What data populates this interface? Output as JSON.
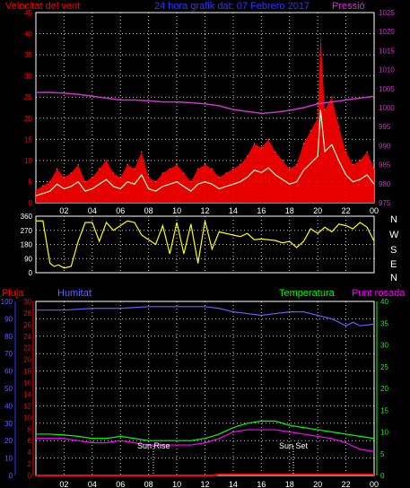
{
  "header": {
    "left_title": "Velocitat del vent",
    "center_title": "24 hora grafik dat: 07 Febrero 2017",
    "right_title": "Pressió"
  },
  "bottom_header": {
    "rain": "Pluja",
    "humidity": "Humitat",
    "temperature": "Temperatura",
    "dewpoint": "Punt rosada"
  },
  "compass_labels": [
    "N",
    "W",
    "S",
    "E",
    "N"
  ],
  "annotations": {
    "sunrise": "Sun Rise",
    "sunset": "Sun Set"
  },
  "x_ticks": [
    "02",
    "04",
    "06",
    "08",
    "10",
    "12",
    "14",
    "16",
    "18",
    "20",
    "22",
    "00"
  ],
  "colors": {
    "wind": "#ff0000",
    "gust_fill": "#ff0000",
    "wind_avg": "#ccffcc",
    "pressure": "#cc33cc",
    "direction": "#ffff00",
    "humidity": "#6060ff",
    "temperature": "#00ff00",
    "dewpoint": "#ff00ff",
    "rain": "#ff0000",
    "grid": "#ffffff",
    "axis": "#ffffff"
  },
  "chart_data": [
    {
      "type": "area",
      "title": "Velocitat del vent",
      "x_unit": "hours",
      "xlim": [
        0,
        24
      ],
      "ylim_left": [
        0,
        45
      ],
      "left_ticks": [
        "0",
        "5",
        "10",
        "15",
        "20",
        "25",
        "30",
        "35",
        "40",
        "45"
      ],
      "ylim_right": [
        975,
        1025
      ],
      "right_ticks": [
        "975",
        "980",
        "985",
        "990",
        "995",
        "1000",
        "1005",
        "1010",
        "1015",
        "1020",
        "1025"
      ],
      "series": [
        {
          "name": "Velocitat del vent",
          "x": [
            0,
            0.5,
            1,
            1.5,
            2,
            2.5,
            3,
            3.5,
            4,
            4.5,
            5,
            5.5,
            6,
            6.5,
            7,
            7.5,
            8,
            8.5,
            9,
            9.5,
            10,
            10.5,
            11,
            11.5,
            12,
            12.5,
            13,
            13.5,
            14,
            14.5,
            15,
            15.5,
            16,
            16.5,
            17,
            17.5,
            18,
            18.5,
            19,
            19.5,
            20,
            20.2,
            20.5,
            21,
            21.5,
            22,
            22.5,
            23,
            23.5,
            24
          ],
          "y": [
            3,
            4,
            5,
            8,
            6,
            7,
            9,
            5,
            6,
            8,
            10,
            7,
            6,
            9,
            8,
            12,
            6,
            5,
            7,
            8,
            9,
            7,
            5,
            8,
            9,
            8,
            6,
            7,
            8,
            9,
            11,
            14,
            13,
            15,
            12,
            10,
            8,
            9,
            14,
            17,
            20,
            40,
            22,
            25,
            18,
            12,
            9,
            10,
            12,
            8
          ]
        },
        {
          "name": "Pressió",
          "x": [
            0,
            1,
            2,
            3,
            4,
            5,
            6,
            7,
            8,
            9,
            10,
            11,
            12,
            13,
            14,
            15,
            16,
            17,
            18,
            19,
            20,
            21,
            22,
            23,
            24
          ],
          "y": [
            1004,
            1004,
            1003.8,
            1003.5,
            1003,
            1002.5,
            1002,
            1002,
            1001.8,
            1001.5,
            1001.5,
            1001.3,
            1001,
            1000.5,
            999.5,
            999,
            998.5,
            998.8,
            999.3,
            1000,
            1001,
            1001.5,
            1002,
            1002.5,
            1003
          ]
        }
      ]
    },
    {
      "type": "line",
      "title": "",
      "xlim": [
        0,
        24
      ],
      "ylim": [
        0,
        360
      ],
      "y_ticks": [
        "0",
        "90",
        "180",
        "270",
        "360"
      ],
      "series": [
        {
          "name": "direction",
          "x": [
            0,
            0.5,
            1,
            1.3,
            1.6,
            2,
            2.5,
            3,
            3.5,
            4,
            4.5,
            5,
            5.5,
            6,
            6.5,
            7,
            7.5,
            8,
            8.5,
            9,
            9.5,
            10,
            10.5,
            11,
            11.5,
            12,
            12.5,
            13,
            13.5,
            14,
            14.5,
            15,
            15.5,
            16,
            16.5,
            17,
            17.5,
            18,
            18.5,
            19,
            19.5,
            20,
            20.5,
            21,
            21.5,
            22,
            22.5,
            23,
            23.5,
            24
          ],
          "y": [
            330,
            330,
            60,
            40,
            50,
            30,
            40,
            200,
            320,
            320,
            200,
            320,
            270,
            300,
            330,
            320,
            240,
            210,
            180,
            300,
            120,
            320,
            120,
            310,
            60,
            330,
            150,
            260,
            250,
            240,
            230,
            250,
            210,
            215,
            210,
            205,
            190,
            200,
            160,
            200,
            280,
            250,
            290,
            260,
            310,
            300,
            280,
            320,
            290,
            200
          ]
        }
      ]
    },
    {
      "type": "line",
      "title": "",
      "xlim": [
        0,
        24
      ],
      "ylim_left_humidity": [
        0,
        100
      ],
      "left_ticks_humidity": [
        "0",
        "10",
        "20",
        "30",
        "40",
        "50",
        "60",
        "70",
        "80",
        "90",
        "100"
      ],
      "ylim_left_rain": [
        0,
        30
      ],
      "left_ticks_rain": [
        "0",
        "2",
        "4",
        "6",
        "8",
        "10",
        "12",
        "14",
        "16",
        "18",
        "20",
        "22",
        "24",
        "26",
        "28",
        "30"
      ],
      "ylim_right": [
        0,
        40
      ],
      "right_ticks": [
        "0",
        "5",
        "10",
        "15",
        "20",
        "25",
        "30",
        "35",
        "40"
      ],
      "series": [
        {
          "name": "Humitat",
          "x": [
            0,
            2,
            4,
            6,
            8,
            10,
            12,
            13,
            14,
            15,
            16,
            17,
            18,
            19,
            20,
            21,
            22,
            22.5,
            23,
            24
          ],
          "y": [
            95,
            95,
            96,
            96,
            97,
            97,
            97,
            96,
            94,
            93,
            92,
            93,
            94,
            94,
            92,
            90,
            86,
            88,
            86,
            87
          ]
        },
        {
          "name": "Temperatura",
          "x": [
            0,
            1,
            2,
            3,
            4,
            5,
            6,
            7,
            8,
            9,
            10,
            11,
            12,
            13,
            14,
            15,
            16,
            17,
            18,
            19,
            20,
            21,
            22,
            23,
            24
          ],
          "y": [
            9.5,
            9.5,
            9.3,
            9,
            8.5,
            8.5,
            9,
            8.5,
            8,
            8,
            8,
            8,
            8.5,
            9.5,
            11,
            12,
            12.5,
            12.5,
            11.5,
            11,
            10.5,
            10,
            9.5,
            9,
            8.5
          ]
        },
        {
          "name": "Punt rosada",
          "x": [
            0,
            1,
            2,
            3,
            4,
            5,
            6,
            7,
            8,
            9,
            10,
            11,
            12,
            13,
            14,
            15,
            16,
            17,
            18,
            19,
            20,
            21,
            22,
            23,
            24
          ],
          "y": [
            8.5,
            8.5,
            8.5,
            8,
            7.5,
            7.5,
            8,
            7.5,
            7,
            7,
            7,
            7,
            7.5,
            8.5,
            10,
            10.5,
            10.5,
            10.5,
            10,
            9.5,
            9,
            8.5,
            7.5,
            6,
            5.5
          ]
        },
        {
          "name": "Pluja",
          "x": [
            0,
            12.5,
            13,
            24
          ],
          "y": [
            0,
            0,
            0.2,
            0.2
          ]
        }
      ]
    }
  ]
}
